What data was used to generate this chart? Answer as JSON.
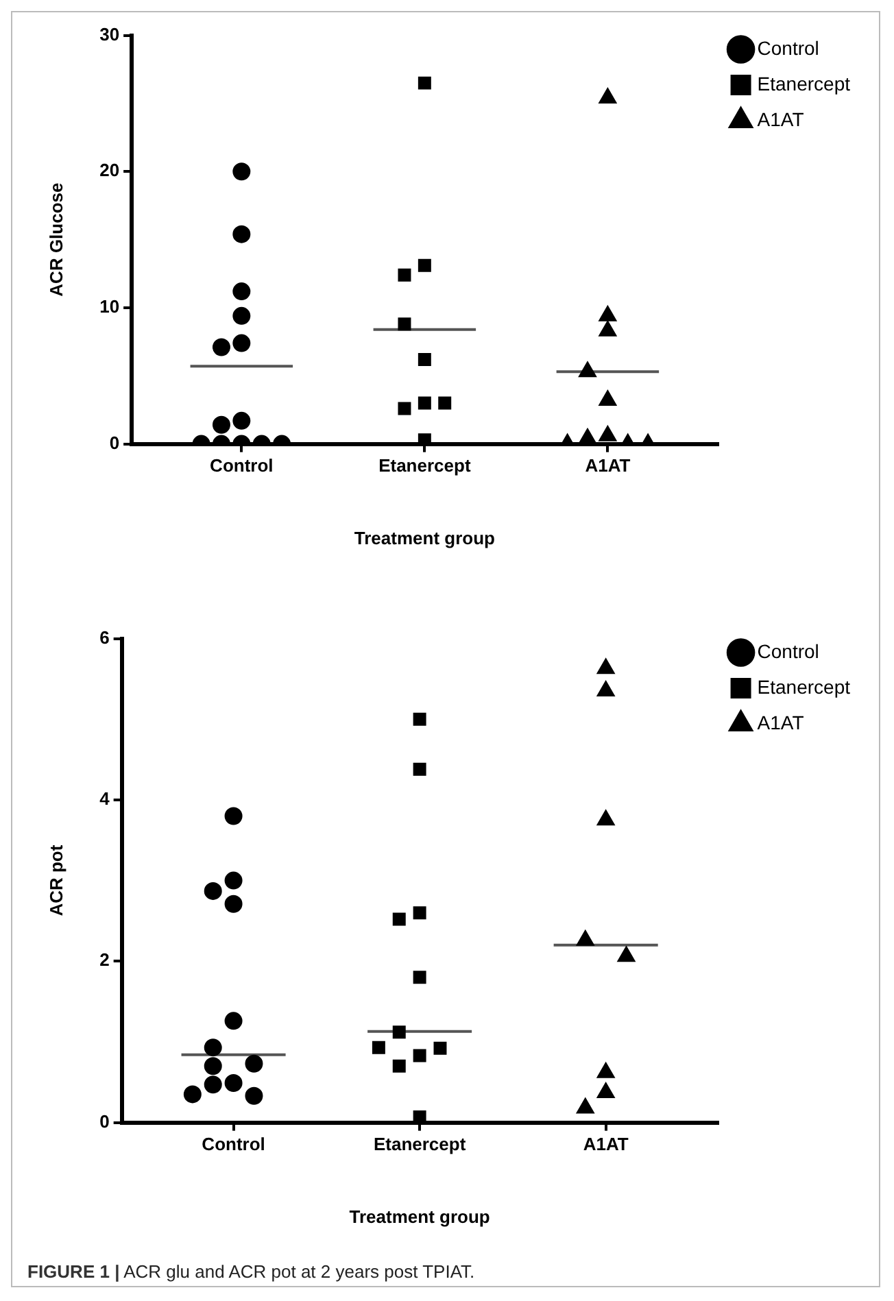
{
  "chart_data": [
    {
      "type": "scatter",
      "ylabel": "ACR Glucose",
      "xlabel": "Treatment group",
      "categories": [
        "Control",
        "Etanercept",
        "A1AT"
      ],
      "ylim": [
        0,
        30
      ],
      "yticks": [
        0,
        10,
        20,
        30
      ],
      "legend": "top right",
      "grid": false,
      "series": [
        {
          "name": "Control",
          "color": "#000000",
          "marker": "circle",
          "x": [
            "Control",
            "Control",
            "Control",
            "Control",
            "Control",
            "Control",
            "Control",
            "Control",
            "Control",
            "Control",
            "Control",
            "Control",
            "Control"
          ],
          "values": [
            20.0,
            15.4,
            11.2,
            9.4,
            7.4,
            7.1,
            1.7,
            1.4,
            0,
            0,
            0,
            0,
            0
          ]
        },
        {
          "name": "Etanercept",
          "color": "#000000",
          "marker": "square",
          "x": [
            "Etanercept",
            "Etanercept",
            "Etanercept",
            "Etanercept",
            "Etanercept",
            "Etanercept",
            "Etanercept",
            "Etanercept",
            "Etanercept"
          ],
          "values": [
            26.5,
            13.1,
            12.4,
            8.8,
            6.2,
            3.0,
            2.6,
            3.0,
            0.3
          ]
        },
        {
          "name": "A1AT",
          "color": "#000000",
          "marker": "triangle",
          "x": [
            "A1AT",
            "A1AT",
            "A1AT",
            "A1AT",
            "A1AT",
            "A1AT",
            "A1AT",
            "A1AT",
            "A1AT",
            "A1AT"
          ],
          "values": [
            25.4,
            9.4,
            8.3,
            5.3,
            3.2,
            0.6,
            0.4,
            0,
            0,
            0
          ]
        },
        {
          "type": "box",
          "color": "#555555",
          "boxes": [
            {
              "low": 5.7,
              "q1": 5.7,
              "median": 5.7,
              "q3": 5.7,
              "high": 5.7
            },
            {
              "low": 8.4,
              "q1": 8.4,
              "median": 8.4,
              "q3": 8.4,
              "high": 8.4
            },
            {
              "low": 5.3,
              "q1": 5.3,
              "median": 5.3,
              "q3": 5.3,
              "high": 5.3
            }
          ]
        }
      ]
    },
    {
      "type": "scatter",
      "ylabel": "ACR pot",
      "xlabel": "Treatment group",
      "categories": [
        "Control",
        "Etanercept",
        "A1AT"
      ],
      "ylim": [
        0,
        6
      ],
      "yticks": [
        0,
        2,
        4,
        6
      ],
      "legend": "top right",
      "grid": false,
      "annotations": [
        "FIGURE 1 | ACR glu and ACR pot at 2 years post TPIAT."
      ],
      "series": [
        {
          "name": "Control",
          "color": "#000000",
          "marker": "circle",
          "x": [
            "Control",
            "Control",
            "Control",
            "Control",
            "Control",
            "Control",
            "Control",
            "Control",
            "Control",
            "Control",
            "Control",
            "Control"
          ],
          "values": [
            3.8,
            3.0,
            2.87,
            2.71,
            1.26,
            0.93,
            0.73,
            0.7,
            0.49,
            0.47,
            0.33,
            0.35
          ]
        },
        {
          "name": "Etanercept",
          "color": "#000000",
          "marker": "square",
          "x": [
            "Etanercept",
            "Etanercept",
            "Etanercept",
            "Etanercept",
            "Etanercept",
            "Etanercept",
            "Etanercept",
            "Etanercept",
            "Etanercept",
            "Etanercept",
            "Etanercept"
          ],
          "values": [
            5.0,
            4.38,
            2.6,
            2.52,
            1.8,
            1.12,
            0.92,
            0.93,
            0.83,
            0.7,
            0.07
          ]
        },
        {
          "name": "A1AT",
          "color": "#000000",
          "marker": "triangle",
          "x": [
            "A1AT",
            "A1AT",
            "A1AT",
            "A1AT",
            "A1AT",
            "A1AT",
            "A1AT",
            "A1AT"
          ],
          "values": [
            5.63,
            5.35,
            3.75,
            2.26,
            2.06,
            0.62,
            0.37,
            0.18
          ]
        },
        {
          "type": "box",
          "color": "#555555",
          "boxes": [
            {
              "low": 0.84,
              "q1": 0.84,
              "median": 0.84,
              "q3": 0.84,
              "high": 0.84
            },
            {
              "low": 1.13,
              "q1": 1.13,
              "median": 1.13,
              "q3": 1.13,
              "high": 1.13
            },
            {
              "low": 2.2,
              "q1": 2.2,
              "median": 2.2,
              "q3": 2.2,
              "high": 2.2
            }
          ]
        }
      ]
    }
  ]
}
